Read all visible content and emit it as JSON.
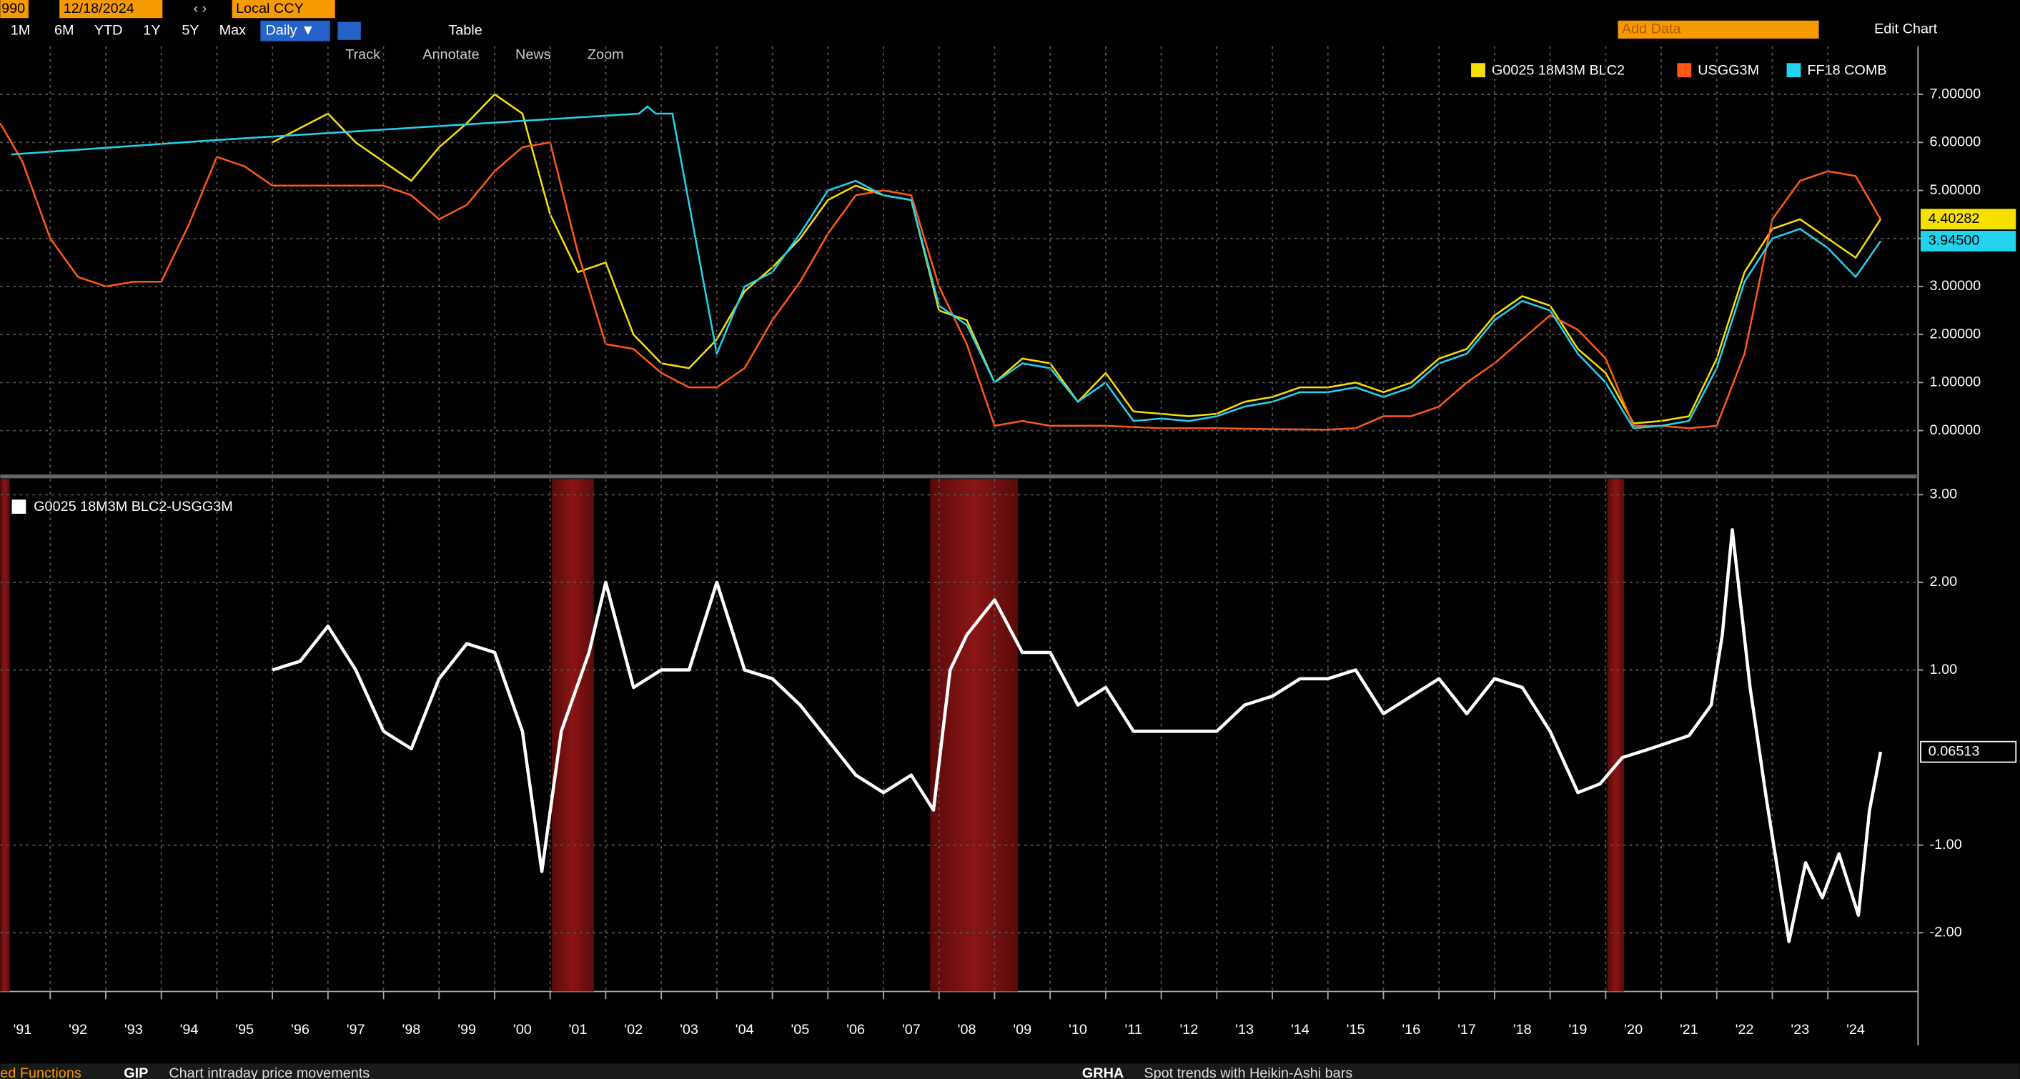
{
  "ui": {
    "start": "990",
    "end_date": "12/18/2024",
    "currency": "Local CCY",
    "ranges": [
      "1M",
      "6M",
      "YTD",
      "1Y",
      "5Y",
      "Max"
    ],
    "frequency": "Daily ▼",
    "table": "Table",
    "add_data": "Add Data",
    "edit_chart": "Edit Chart",
    "tools": [
      "Track",
      "Annotate",
      "News",
      "Zoom"
    ],
    "footer": {
      "left": "ed Functions",
      "code1": "GIP",
      "desc1": "Chart intraday price movements",
      "code2": "GRHA",
      "desc2": "Spot trends with Heikin-Ashi bars"
    }
  },
  "chart_data": [
    {
      "type": "line",
      "xlim": [
        1991.1,
        2025.6
      ],
      "ylim": [
        -0.9,
        8.0
      ],
      "yticks": [
        {
          "value": 0,
          "label": "0.00000"
        },
        {
          "value": 1,
          "label": "1.00000"
        },
        {
          "value": 2,
          "label": "2.00000"
        },
        {
          "value": 3,
          "label": "3.00000"
        },
        {
          "value": 4,
          "label": "4.00000"
        },
        {
          "value": 5,
          "label": "5.00000"
        },
        {
          "value": 6,
          "label": "6.00000"
        },
        {
          "value": 7,
          "label": "7.00000"
        }
      ],
      "grid": true,
      "legend": "top-right",
      "series": [
        {
          "name": "G0025 18M3M BLC2",
          "color": "#f5e000",
          "x": [
            1996,
            1996.5,
            1997,
            1997.5,
            1998,
            1998.5,
            1999,
            1999.5,
            2000,
            2000.5,
            2001,
            2001.5,
            2002,
            2002.5,
            2003,
            2003.5,
            2004,
            2004.5,
            2005,
            2005.5,
            2006,
            2006.5,
            2007,
            2007.5,
            2008,
            2008.5,
            2009,
            2009.5,
            2010,
            2010.5,
            2011,
            2011.5,
            2012,
            2012.5,
            2013,
            2013.5,
            2014,
            2014.5,
            2015,
            2015.5,
            2016,
            2016.5,
            2017,
            2017.5,
            2018,
            2018.5,
            2019,
            2019.5,
            2020,
            2020.5,
            2021,
            2021.5,
            2022,
            2022.5,
            2023,
            2023.5,
            2024,
            2024.5,
            2024.95
          ],
          "values": [
            6.0,
            6.3,
            6.6,
            6.0,
            5.6,
            5.2,
            5.9,
            6.4,
            7.0,
            6.6,
            4.5,
            3.3,
            3.5,
            2.0,
            1.4,
            1.3,
            1.9,
            2.9,
            3.4,
            4.0,
            4.8,
            5.1,
            4.9,
            4.8,
            2.5,
            2.3,
            1.0,
            1.5,
            1.4,
            0.6,
            1.2,
            0.4,
            0.35,
            0.3,
            0.35,
            0.6,
            0.7,
            0.9,
            0.9,
            1.0,
            0.8,
            1.0,
            1.5,
            1.7,
            2.4,
            2.8,
            2.6,
            1.7,
            1.2,
            0.15,
            0.2,
            0.3,
            1.5,
            3.3,
            4.2,
            4.4,
            4.0,
            3.6,
            4.40282
          ],
          "end_label": 4.40282
        },
        {
          "name": "USGG3M",
          "color": "#ff5a14",
          "x": [
            1991.1,
            1991.5,
            1992,
            1992.5,
            1993,
            1993.5,
            1994,
            1994.5,
            1995,
            1995.5,
            1996,
            1996.5,
            1997,
            1997.5,
            1998,
            1998.5,
            1999,
            1999.5,
            2000,
            2000.5,
            2001,
            2001.5,
            2002,
            2002.5,
            2003,
            2003.5,
            2004,
            2004.5,
            2005,
            2005.5,
            2006,
            2006.5,
            2007,
            2007.5,
            2008,
            2008.5,
            2009,
            2009.5,
            2010,
            2011,
            2012,
            2013,
            2014,
            2015,
            2015.5,
            2016,
            2016.5,
            2017,
            2017.5,
            2018,
            2018.5,
            2019,
            2019.5,
            2020,
            2020.5,
            2021,
            2021.5,
            2022,
            2022.5,
            2023,
            2023.5,
            2024,
            2024.5,
            2024.95
          ],
          "values": [
            6.4,
            5.6,
            4.0,
            3.2,
            3.0,
            3.1,
            3.1,
            4.3,
            5.7,
            5.5,
            5.1,
            5.1,
            5.1,
            5.1,
            5.1,
            4.9,
            4.4,
            4.7,
            5.4,
            5.9,
            6.0,
            3.7,
            1.8,
            1.7,
            1.2,
            0.9,
            0.9,
            1.3,
            2.3,
            3.1,
            4.1,
            4.9,
            5.0,
            4.9,
            3.0,
            1.8,
            0.1,
            0.2,
            0.1,
            0.1,
            0.05,
            0.05,
            0.03,
            0.02,
            0.05,
            0.3,
            0.3,
            0.5,
            1.0,
            1.4,
            1.9,
            2.4,
            2.1,
            1.5,
            0.1,
            0.1,
            0.05,
            0.1,
            1.6,
            4.4,
            5.2,
            5.4,
            5.3,
            4.4
          ]
        },
        {
          "name": "FF18 COMB",
          "color": "#22d3ee",
          "x": [
            1991.3,
            1995,
            2002.6,
            2002.75,
            2002.9,
            2003.2,
            2004,
            2004.5,
            2005,
            2005.5,
            2006,
            2006.5,
            2007,
            2007.5,
            2008,
            2008.5,
            2009,
            2009.5,
            2010,
            2010.5,
            2011,
            2011.5,
            2012,
            2012.5,
            2013,
            2013.5,
            2014,
            2014.5,
            2015,
            2015.5,
            2016,
            2016.5,
            2017,
            2017.5,
            2018,
            2018.5,
            2019,
            2019.5,
            2020,
            2020.5,
            2021,
            2021.5,
            2022,
            2022.5,
            2023,
            2023.5,
            2024,
            2024.5,
            2024.95
          ],
          "values": [
            5.75,
            6.05,
            6.6,
            6.75,
            6.6,
            6.6,
            1.6,
            3.0,
            3.3,
            4.1,
            5.0,
            5.2,
            4.9,
            4.8,
            2.6,
            2.2,
            1.0,
            1.4,
            1.3,
            0.6,
            1.0,
            0.2,
            0.25,
            0.2,
            0.3,
            0.5,
            0.6,
            0.8,
            0.8,
            0.9,
            0.7,
            0.9,
            1.4,
            1.6,
            2.3,
            2.7,
            2.5,
            1.6,
            1.0,
            0.05,
            0.1,
            0.2,
            1.3,
            3.1,
            4.0,
            4.2,
            3.8,
            3.2,
            3.945
          ],
          "end_label": {
            "value": 3.945,
            "label": "3.94500"
          }
        }
      ]
    },
    {
      "type": "line",
      "xlim": [
        1991.1,
        2025.6
      ],
      "ylim": [
        -2.67,
        3.18
      ],
      "yticks": [
        {
          "value": -2,
          "label": "-2.00"
        },
        {
          "value": -1,
          "label": "-1.00"
        },
        {
          "value": 1,
          "label": "1.00"
        },
        {
          "value": 2,
          "label": "2.00"
        },
        {
          "value": 3,
          "label": "3.00"
        }
      ],
      "xticks": [
        {
          "value": 1991,
          "label": "'91"
        },
        {
          "value": 1992,
          "label": "'92"
        },
        {
          "value": 1993,
          "label": "'93"
        },
        {
          "value": 1994,
          "label": "'94"
        },
        {
          "value": 1995,
          "label": "'95"
        },
        {
          "value": 1996,
          "label": "'96"
        },
        {
          "value": 1997,
          "label": "'97"
        },
        {
          "value": 1998,
          "label": "'98"
        },
        {
          "value": 1999,
          "label": "'99"
        },
        {
          "value": 2000,
          "label": "'00"
        },
        {
          "value": 2001,
          "label": "'01"
        },
        {
          "value": 2002,
          "label": "'02"
        },
        {
          "value": 2003,
          "label": "'03"
        },
        {
          "value": 2004,
          "label": "'04"
        },
        {
          "value": 2005,
          "label": "'05"
        },
        {
          "value": 2006,
          "label": "'06"
        },
        {
          "value": 2007,
          "label": "'07"
        },
        {
          "value": 2008,
          "label": "'08"
        },
        {
          "value": 2009,
          "label": "'09"
        },
        {
          "value": 2010,
          "label": "'10"
        },
        {
          "value": 2011,
          "label": "'11"
        },
        {
          "value": 2012,
          "label": "'12"
        },
        {
          "value": 2013,
          "label": "'13"
        },
        {
          "value": 2014,
          "label": "'14"
        },
        {
          "value": 2015,
          "label": "'15"
        },
        {
          "value": 2016,
          "label": "'16"
        },
        {
          "value": 2017,
          "label": "'17"
        },
        {
          "value": 2018,
          "label": "'18"
        },
        {
          "value": 2019,
          "label": "'19"
        },
        {
          "value": 2020,
          "label": "'20"
        },
        {
          "value": 2021,
          "label": "'21"
        },
        {
          "value": 2022,
          "label": "'22"
        },
        {
          "value": 2023,
          "label": "'23"
        },
        {
          "value": 2024,
          "label": "'24"
        }
      ],
      "grid": true,
      "legend": "top-left",
      "shaded_regions": [
        [
          1991.1,
          1991.27
        ],
        [
          2001.03,
          2001.79
        ],
        [
          2007.84,
          2009.42
        ],
        [
          2020.03,
          2020.33
        ]
      ],
      "series": [
        {
          "name": "G0025 18M3M BLC2-USGG3M",
          "color": "#ffffff",
          "x": [
            1996,
            1996.5,
            1997,
            1997.5,
            1998,
            1998.5,
            1999,
            1999.5,
            2000,
            2000.5,
            2000.85,
            2001.2,
            2001.7,
            2002,
            2002.5,
            2003,
            2003.5,
            2004,
            2004.5,
            2005,
            2005.5,
            2006,
            2006.5,
            2007,
            2007.5,
            2007.9,
            2008.2,
            2008.5,
            2009,
            2009.5,
            2010,
            2010.5,
            2011,
            2011.5,
            2012,
            2012.5,
            2013,
            2013.5,
            2014,
            2014.5,
            2015,
            2015.5,
            2016,
            2016.5,
            2017,
            2017.5,
            2018,
            2018.5,
            2019,
            2019.5,
            2019.9,
            2020.3,
            2020.8,
            2021.5,
            2021.9,
            2022.1,
            2022.28,
            2022.6,
            2022.9,
            2023.3,
            2023.6,
            2023.9,
            2024.2,
            2024.55,
            2024.75,
            2024.95
          ],
          "values": [
            1.0,
            1.1,
            1.5,
            1.0,
            0.3,
            0.1,
            0.9,
            1.3,
            1.2,
            0.3,
            -1.3,
            0.3,
            1.2,
            2.0,
            0.8,
            1.0,
            1.0,
            2.0,
            1.0,
            0.9,
            0.6,
            0.2,
            -0.2,
            -0.4,
            -0.2,
            -0.6,
            1.0,
            1.4,
            1.8,
            1.2,
            1.2,
            0.6,
            0.8,
            0.3,
            0.3,
            0.3,
            0.3,
            0.6,
            0.7,
            0.9,
            0.9,
            1.0,
            0.5,
            0.7,
            0.9,
            0.5,
            0.9,
            0.8,
            0.3,
            -0.4,
            -0.3,
            0.0,
            0.1,
            0.25,
            0.6,
            1.4,
            2.6,
            0.8,
            -0.5,
            -2.1,
            -1.2,
            -1.6,
            -1.1,
            -1.8,
            -0.6,
            0.06513
          ],
          "end_label": 0.06513
        }
      ]
    }
  ]
}
